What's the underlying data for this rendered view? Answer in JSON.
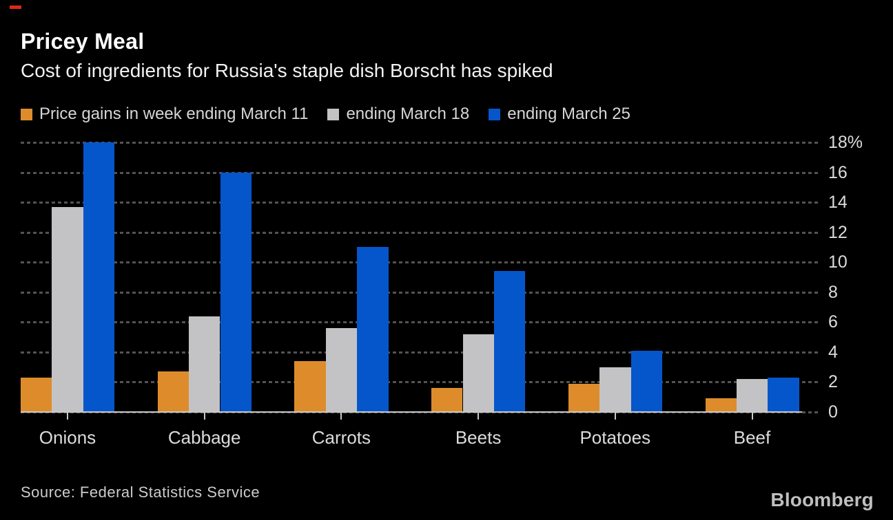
{
  "accent": {
    "top_left_dash_color": "#e0261c"
  },
  "header": {
    "title": "Pricey Meal",
    "subtitle": "Cost of ingredients for Russia's staple dish Borscht has spiked"
  },
  "chart_data": {
    "type": "bar",
    "title": "Pricey Meal",
    "subtitle": "Cost of ingredients for Russia's staple dish Borscht has spiked",
    "categories": [
      "Onions",
      "Cabbage",
      "Carrots",
      "Beets",
      "Potatoes",
      "Beef"
    ],
    "series": [
      {
        "name": "Price gains in week ending March 11",
        "color": "#de8c2b",
        "values": [
          2.3,
          2.7,
          3.4,
          1.6,
          1.9,
          0.9
        ]
      },
      {
        "name": "ending March 18",
        "color": "#c3c3c6",
        "values": [
          13.7,
          6.4,
          5.6,
          5.2,
          3.0,
          2.2
        ]
      },
      {
        "name": "ending March 25",
        "color": "#0656cb",
        "values": [
          18.0,
          16.0,
          11.0,
          9.4,
          4.1,
          2.3
        ]
      }
    ],
    "xlabel": "",
    "ylabel": "",
    "ylim": [
      0,
      18
    ],
    "ytick_step": 2,
    "ytick_labels": [
      "0",
      "2",
      "4",
      "6",
      "8",
      "10",
      "12",
      "14",
      "16",
      "18%"
    ],
    "grid": "dotted horizontal lines every 2%",
    "legend_position": "top",
    "unit": "percent"
  },
  "footer": {
    "source": "Source: Federal Statistics Service",
    "brand": "Bloomberg"
  }
}
